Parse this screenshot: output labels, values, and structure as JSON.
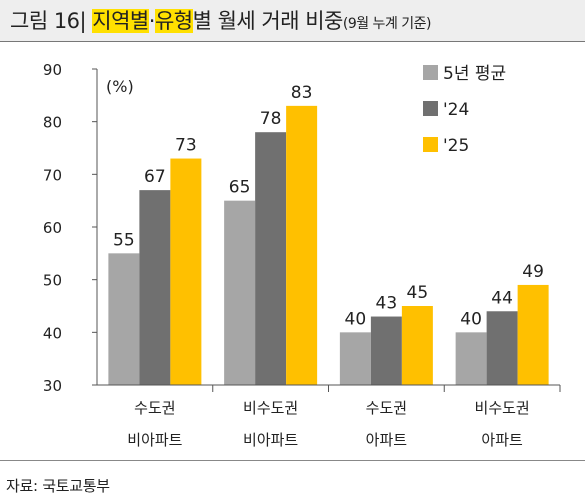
{
  "title": {
    "prefix": "그림 16| ",
    "hl1": "지역별",
    "mid": "·",
    "hl2": "유형",
    "suffix": "별 월세 거래 비중",
    "sub": "(9월 누계 기준)"
  },
  "source": "자료: 국토교통부",
  "chart_data": {
    "type": "bar",
    "unit": "(%)",
    "categories": [
      [
        "수도권",
        "비아파트"
      ],
      [
        "비수도권",
        "비아파트"
      ],
      [
        "수도권",
        "아파트"
      ],
      [
        "비수도권",
        "아파트"
      ]
    ],
    "series": [
      {
        "name": "5년 평균",
        "color": "#a6a6a6",
        "values": [
          55,
          65,
          40,
          40
        ]
      },
      {
        "name": "'24",
        "color": "#707070",
        "values": [
          67,
          78,
          43,
          44
        ]
      },
      {
        "name": "'25",
        "color": "#ffc000",
        "values": [
          73,
          83,
          45,
          49
        ]
      }
    ],
    "ylim": [
      30,
      90
    ],
    "yticks": [
      30,
      40,
      50,
      60,
      70,
      80,
      90
    ],
    "legend": "top-right",
    "grid": false
  }
}
